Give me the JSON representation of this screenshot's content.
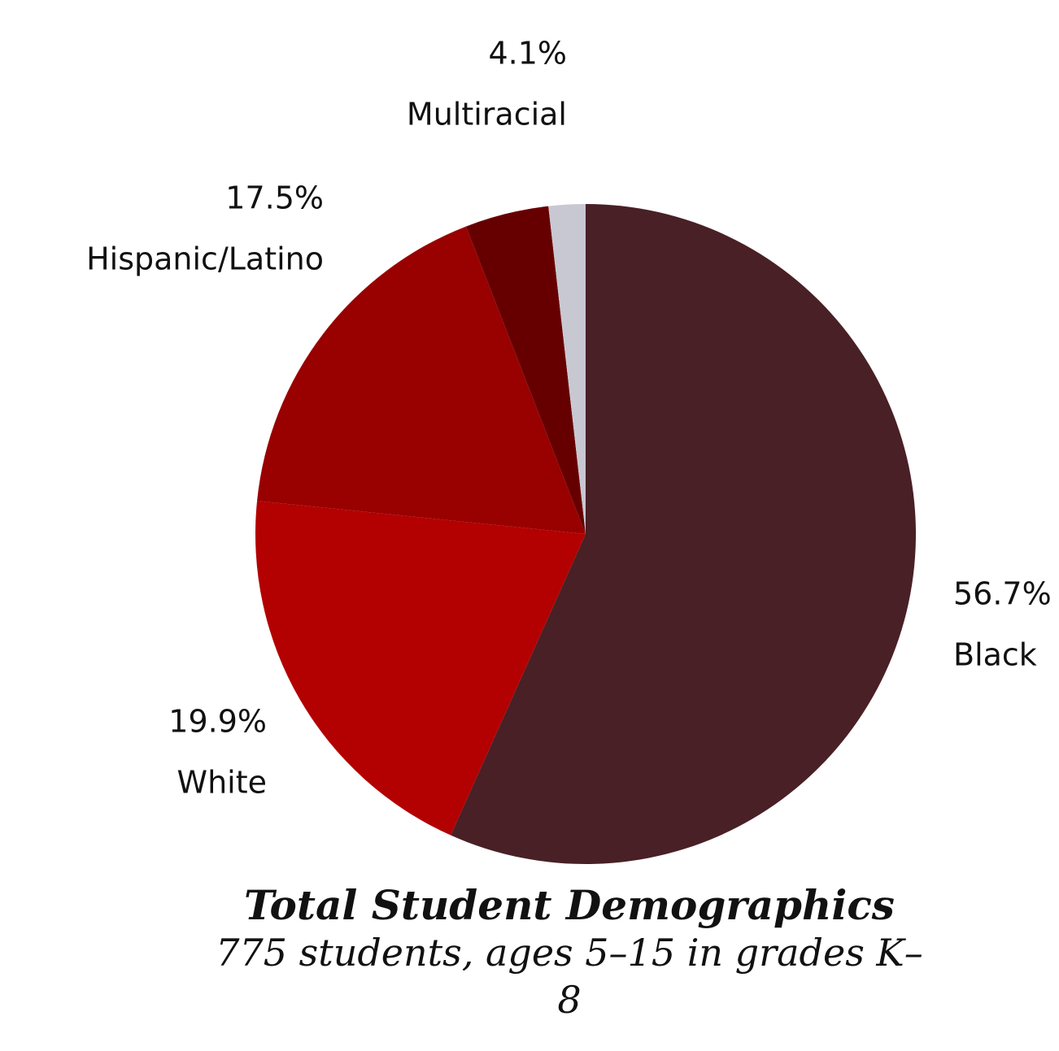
{
  "chart_data": {
    "type": "pie",
    "title": "Total Student Demographics",
    "subtitle": "775 students, ages 5–15 in grades K–8",
    "categories": [
      "Black",
      "White",
      "Hispanic/Latino",
      "Multiracial",
      null
    ],
    "values": [
      56.7,
      19.9,
      17.5,
      4.1,
      1.8
    ],
    "value_labels": [
      "56.7%",
      "19.9%",
      "17.5%",
      "4.1%",
      null
    ],
    "colors": [
      "#482026",
      "#b30000",
      "#990000",
      "#660000",
      "#c8c8d2"
    ]
  }
}
